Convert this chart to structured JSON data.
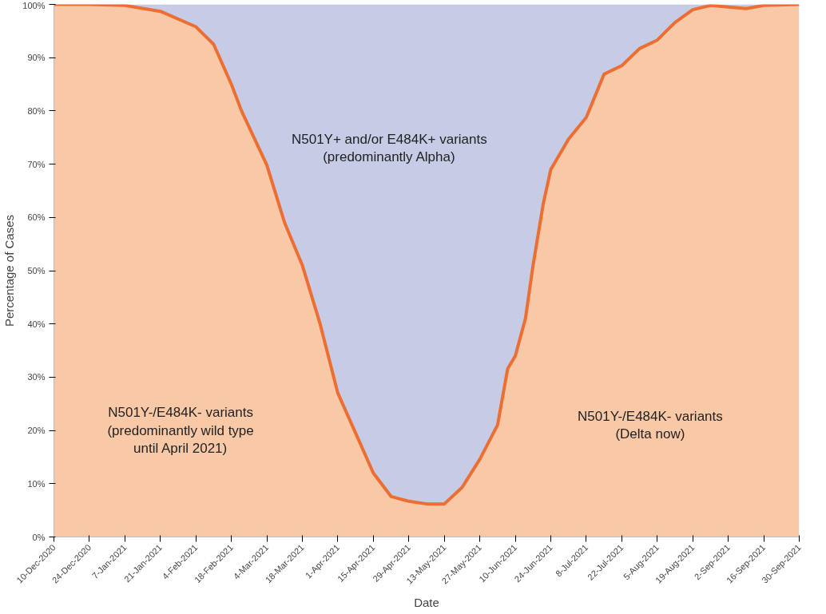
{
  "chart_data": {
    "type": "area",
    "stacked": true,
    "xlabel": "Date",
    "ylabel": "Percentage of Cases",
    "x": [
      "2020-12-10",
      "2020-12-24",
      "2021-01-07",
      "2021-01-21",
      "2021-02-04",
      "2021-02-11",
      "2021-02-18",
      "2021-02-22",
      "2021-03-04",
      "2021-03-11",
      "2021-03-18",
      "2021-03-25",
      "2021-04-01",
      "2021-04-08",
      "2021-04-15",
      "2021-04-22",
      "2021-04-29",
      "2021-05-06",
      "2021-05-13",
      "2021-05-20",
      "2021-05-27",
      "2021-06-03",
      "2021-06-07",
      "2021-06-10",
      "2021-06-14",
      "2021-06-17",
      "2021-06-21",
      "2021-06-24",
      "2021-07-01",
      "2021-07-08",
      "2021-07-15",
      "2021-07-22",
      "2021-07-29",
      "2021-08-05",
      "2021-08-12",
      "2021-08-19",
      "2021-08-26",
      "2021-09-02",
      "2021-09-09",
      "2021-09-16",
      "2021-09-30"
    ],
    "series": [
      {
        "color": "#f9c9a7",
        "values": [
          100,
          100,
          99.8,
          98.7,
          95.8,
          92.5,
          85,
          80,
          69.8,
          59,
          51,
          40,
          27,
          19.5,
          12,
          7.6,
          6.7,
          6.2,
          6.2,
          9.3,
          14.6,
          21,
          31.6,
          34,
          41,
          51,
          62.5,
          69,
          74.7,
          78.8,
          86.9,
          88.5,
          91.7,
          93.3,
          96.6,
          99,
          99.8,
          99.5,
          99.2,
          99.8,
          100
        ]
      },
      {
        "color": "#c6cbe6",
        "values": [
          0,
          0,
          0.2,
          1.3,
          4.2,
          7.5,
          15,
          20,
          30.2,
          41,
          49,
          60,
          73,
          80.5,
          88,
          92.4,
          93.3,
          93.8,
          93.8,
          90.7,
          85.4,
          79,
          68.4,
          66,
          59,
          49,
          37.5,
          31,
          25.3,
          21.2,
          13.1,
          11.5,
          8.3,
          6.7,
          3.4,
          1,
          0.2,
          0.5,
          0.8,
          0.2,
          0
        ]
      }
    ],
    "xlim": [
      "2020-12-10",
      "2021-09-30"
    ],
    "xticks": [
      {
        "value": "2020-12-10",
        "label": "10-Dec-2020"
      },
      {
        "value": "2020-12-24",
        "label": "24-Dec-2020"
      },
      {
        "value": "2021-01-07",
        "label": "7-Jan-2021"
      },
      {
        "value": "2021-01-21",
        "label": "21-Jan-2021"
      },
      {
        "value": "2021-02-04",
        "label": "4-Feb-2021"
      },
      {
        "value": "2021-02-18",
        "label": "18-Feb-2021"
      },
      {
        "value": "2021-03-04",
        "label": "4-Mar-2021"
      },
      {
        "value": "2021-03-18",
        "label": "18-Mar-2021"
      },
      {
        "value": "2021-04-01",
        "label": "1-Apr-2021"
      },
      {
        "value": "2021-04-15",
        "label": "15-Apr-2021"
      },
      {
        "value": "2021-04-29",
        "label": "29-Apr-2021"
      },
      {
        "value": "2021-05-13",
        "label": "13-May-2021"
      },
      {
        "value": "2021-05-27",
        "label": "27-May-2021"
      },
      {
        "value": "2021-06-10",
        "label": "10-Jun-2021"
      },
      {
        "value": "2021-06-24",
        "label": "24-Jun-2021"
      },
      {
        "value": "2021-07-08",
        "label": "8-Jul-2021"
      },
      {
        "value": "2021-07-22",
        "label": "22-Jul-2021"
      },
      {
        "value": "2021-08-05",
        "label": "5-Aug-2021"
      },
      {
        "value": "2021-08-19",
        "label": "19-Aug-2021"
      },
      {
        "value": "2021-09-02",
        "label": "2-Sep-2021"
      },
      {
        "value": "2021-09-16",
        "label": "16-Sep-2021"
      },
      {
        "value": "2021-09-30",
        "label": "30-Sep-2021"
      }
    ],
    "ylim": [
      0,
      100
    ],
    "yticks": [
      {
        "value": 0,
        "label": "0%"
      },
      {
        "value": 10,
        "label": "10%"
      },
      {
        "value": 20,
        "label": "20%"
      },
      {
        "value": 30,
        "label": "30%"
      },
      {
        "value": 40,
        "label": "40%"
      },
      {
        "value": 50,
        "label": "50%"
      },
      {
        "value": 60,
        "label": "60%"
      },
      {
        "value": 70,
        "label": "70%"
      },
      {
        "value": 80,
        "label": "80%"
      },
      {
        "value": 90,
        "label": "90%"
      },
      {
        "value": 100,
        "label": "100%"
      }
    ],
    "annotations": [
      "N501Y+ and/or E484K+ variants\n(predominantly Alpha)",
      "N501Y-/E484K- variants\n(predominantly wild type\nuntil April 2021)",
      "N501Y-/E484K- variants\n(Delta now)"
    ]
  }
}
